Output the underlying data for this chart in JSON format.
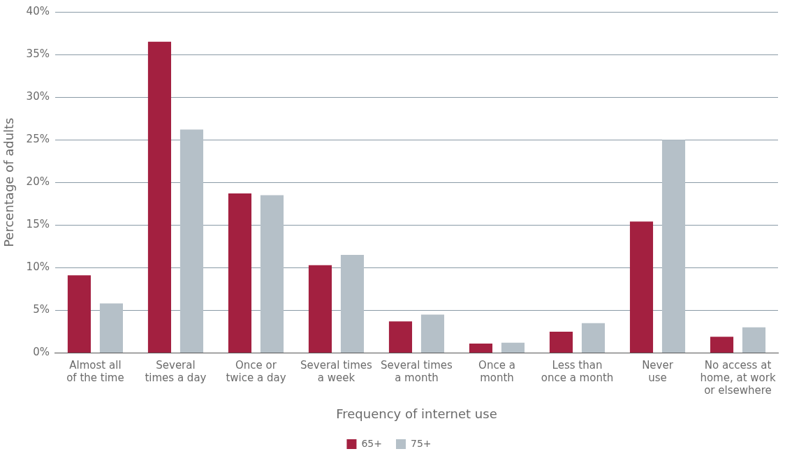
{
  "chart_data": {
    "type": "bar",
    "categories": [
      "Almost all\nof the time",
      "Several\ntimes a day",
      "Once or\ntwice a day",
      "Several times\na week",
      "Several times\na month",
      "Once a\nmonth",
      "Less than\nonce a month",
      "Never\nuse",
      "No access at\nhome, at work\nor elsewhere"
    ],
    "series": [
      {
        "name": "65+",
        "color": "#a32040",
        "values": [
          9.1,
          36.5,
          18.7,
          10.3,
          3.7,
          1.1,
          2.5,
          15.4,
          1.9
        ]
      },
      {
        "name": "75+",
        "color": "#b5c0c8",
        "values": [
          5.8,
          26.2,
          18.5,
          11.5,
          4.5,
          1.2,
          3.5,
          25.0,
          3.0
        ]
      }
    ],
    "ylim": [
      0,
      40
    ],
    "yticks": [
      {
        "value": 0,
        "label": "0%"
      },
      {
        "value": 5,
        "label": "5%"
      },
      {
        "value": 10,
        "label": "10%"
      },
      {
        "value": 15,
        "label": "15%"
      },
      {
        "value": 20,
        "label": "20%"
      },
      {
        "value": 25,
        "label": "25%"
      },
      {
        "value": 30,
        "label": "30%"
      },
      {
        "value": 35,
        "label": "35%"
      },
      {
        "value": 40,
        "label": "40%"
      }
    ],
    "xlabel": "Frequency of internet use",
    "ylabel": "Percentage of adults",
    "grid": "y",
    "legend": "bottom"
  }
}
